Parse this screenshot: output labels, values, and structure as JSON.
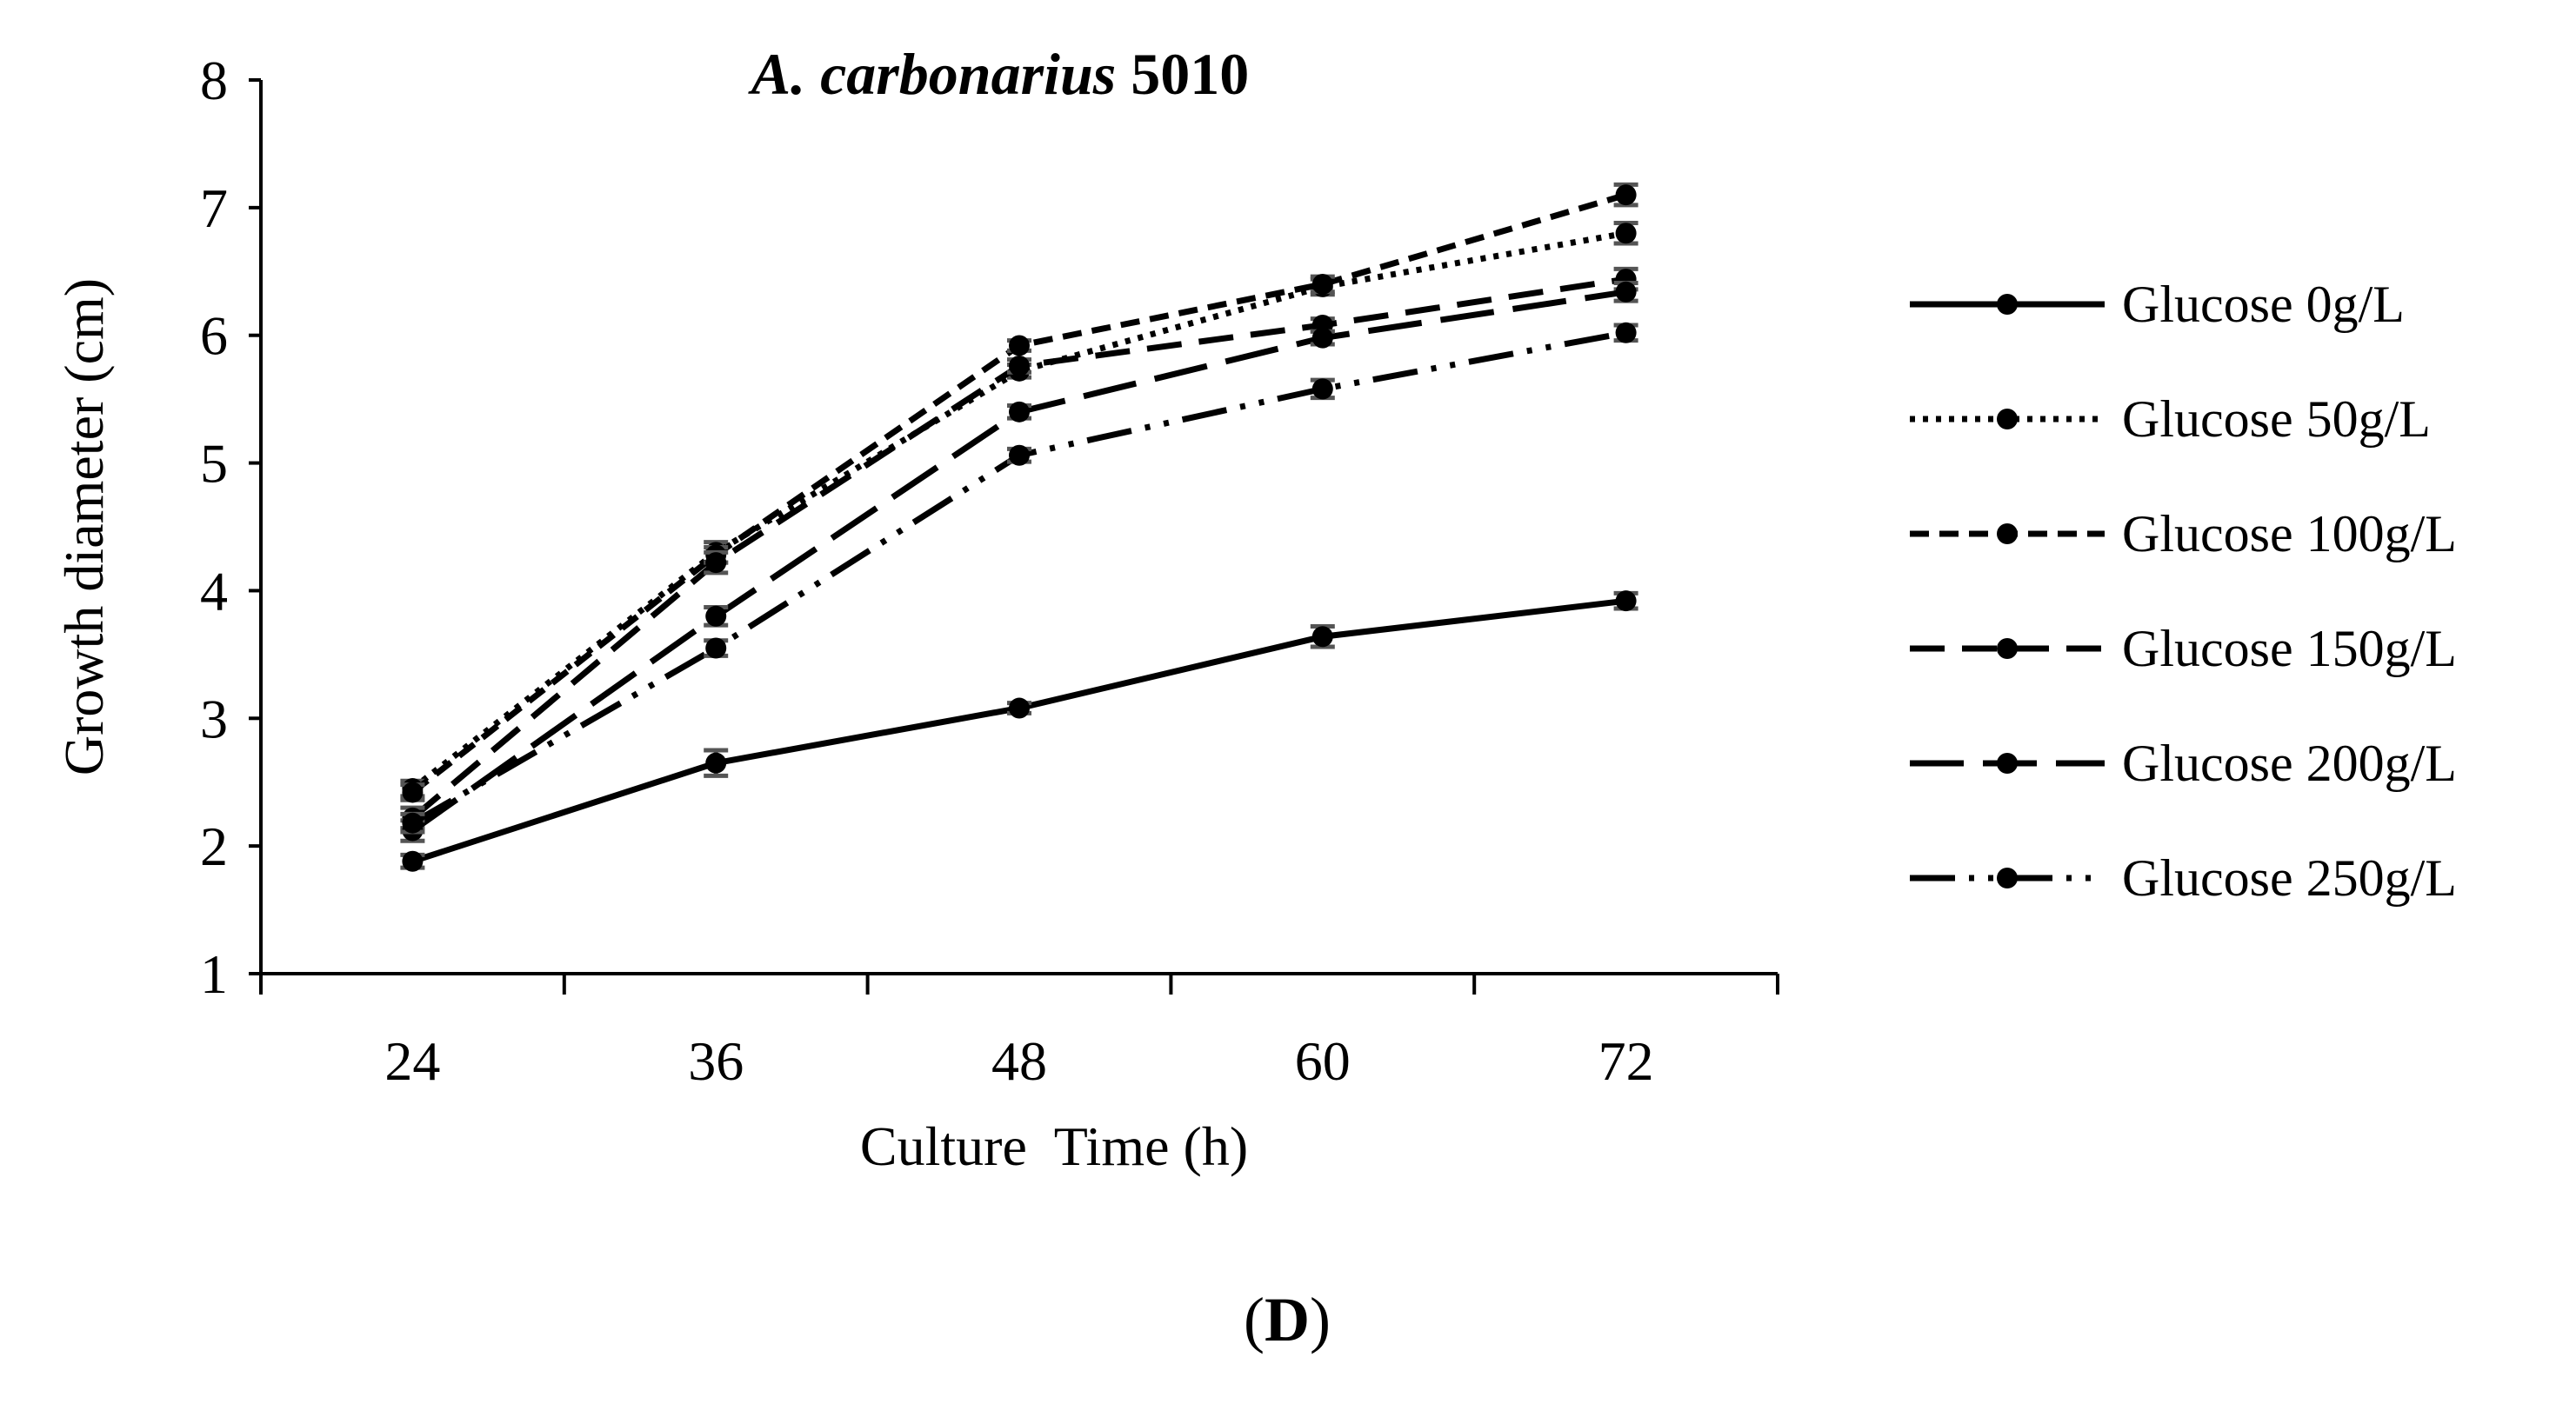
{
  "chart_data": {
    "type": "line",
    "title_italic": "A. carbonarius",
    "title_rest": " 5010",
    "xlabel": "Culture  Time (h)",
    "ylabel": "Growth diameter (cm)",
    "panel_label_open": "(",
    "panel_label_letter": "D",
    "panel_label_close": ")",
    "x": [
      24,
      36,
      48,
      60,
      72
    ],
    "ylim": [
      1,
      8
    ],
    "yticks": [
      1,
      2,
      3,
      4,
      5,
      6,
      7,
      8
    ],
    "series": [
      {
        "name": "Glucose 0g/L",
        "dash": "solid",
        "values": [
          1.88,
          2.65,
          3.08,
          3.64,
          3.92
        ],
        "errors": [
          0.05,
          0.1,
          0.04,
          0.08,
          0.06
        ]
      },
      {
        "name": "Glucose 50g/L",
        "dash": "dot",
        "values": [
          2.45,
          4.3,
          5.72,
          6.38,
          6.8
        ],
        "errors": [
          0.06,
          0.08,
          0.05,
          0.06,
          0.08
        ]
      },
      {
        "name": "Glucose 100g/L",
        "dash": "shortdash",
        "values": [
          2.42,
          4.28,
          5.92,
          6.4,
          7.1
        ],
        "errors": [
          0.06,
          0.06,
          0.04,
          0.06,
          0.08
        ]
      },
      {
        "name": "Glucose 150g/L",
        "dash": "dash",
        "values": [
          2.22,
          4.22,
          5.76,
          6.08,
          6.44
        ],
        "errors": [
          0.08,
          0.08,
          0.05,
          0.05,
          0.08
        ]
      },
      {
        "name": "Glucose 200g/L",
        "dash": "longdash",
        "values": [
          2.12,
          3.8,
          5.4,
          5.98,
          6.34
        ],
        "errors": [
          0.08,
          0.07,
          0.05,
          0.05,
          0.07
        ]
      },
      {
        "name": "Glucose 250g/L",
        "dash": "dashdotdot",
        "values": [
          2.18,
          3.55,
          5.06,
          5.58,
          6.02
        ],
        "errors": [
          0.07,
          0.06,
          0.05,
          0.07,
          0.06
        ]
      }
    ]
  }
}
